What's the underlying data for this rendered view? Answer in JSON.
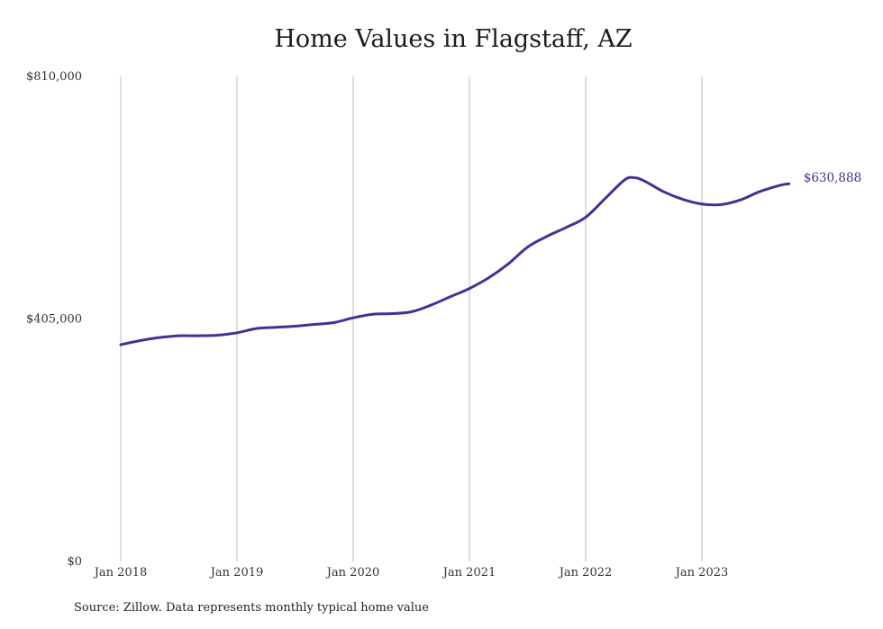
{
  "chart_data": {
    "type": "line",
    "title": "Home Values in Flagstaff, AZ",
    "source_note": "Source: Zillow. Data represents monthly typical home value",
    "ylim": [
      0,
      810000
    ],
    "y_ticks": [
      {
        "value": 0,
        "label": "$0"
      },
      {
        "value": 405000,
        "label": "$405,000"
      },
      {
        "value": 810000,
        "label": "$810,000"
      }
    ],
    "x_ticks": [
      {
        "date": "2018-01",
        "label": "Jan 2018"
      },
      {
        "date": "2019-01",
        "label": "Jan 2019"
      },
      {
        "date": "2020-01",
        "label": "Jan 2020"
      },
      {
        "date": "2021-01",
        "label": "Jan 2021"
      },
      {
        "date": "2022-01",
        "label": "Jan 2022"
      },
      {
        "date": "2023-01",
        "label": "Jan 2023"
      }
    ],
    "grid": "vertical",
    "line_color": "#3a3597",
    "end_label": "$630,888",
    "series": [
      {
        "x": [
          "2018-01",
          "2018-03",
          "2018-05",
          "2018-07",
          "2018-09",
          "2018-11",
          "2019-01",
          "2019-03",
          "2019-05",
          "2019-07",
          "2019-09",
          "2019-11",
          "2020-01",
          "2020-03",
          "2020-05",
          "2020-07",
          "2020-09",
          "2020-11",
          "2021-01",
          "2021-03",
          "2021-05",
          "2021-07",
          "2021-09",
          "2021-11",
          "2022-01",
          "2022-03",
          "2022-05",
          "2022-06",
          "2022-07",
          "2022-09",
          "2022-11",
          "2023-01",
          "2023-03",
          "2023-05",
          "2023-07",
          "2023-09",
          "2023-10"
        ],
        "values": [
          362000,
          369000,
          374000,
          377000,
          377000,
          378000,
          382000,
          389000,
          391000,
          393000,
          396000,
          399000,
          407000,
          413000,
          414000,
          417000,
          428000,
          442000,
          456000,
          474000,
          497000,
          525000,
          543000,
          558000,
          575000,
          606000,
          637000,
          641000,
          636000,
          618000,
          605000,
          597000,
          596000,
          604000,
          618000,
          628000,
          630888
        ]
      }
    ]
  }
}
